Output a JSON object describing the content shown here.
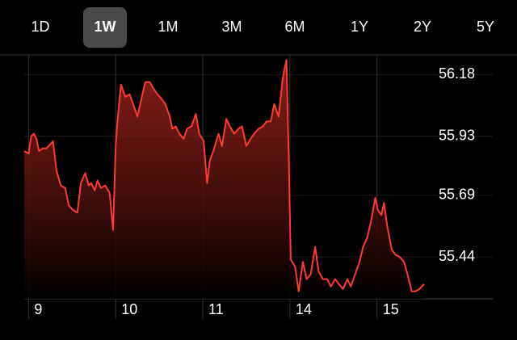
{
  "tabs": [
    "1D",
    "1W",
    "1M",
    "3M",
    "6M",
    "1Y",
    "2Y",
    "5Y"
  ],
  "selected_tab": 1,
  "chart_data": {
    "type": "area",
    "color": "#ff3b30",
    "grid": true,
    "x": [
      -0.05,
      0,
      0.03,
      0.06,
      0.09,
      0.12,
      0.16,
      0.2,
      0.23,
      0.28,
      0.32,
      0.37,
      0.42,
      0.46,
      0.51,
      0.56,
      0.6,
      0.65,
      0.69,
      0.72,
      0.76,
      0.79,
      0.83,
      0.88,
      0.93,
      0.97,
      1.0,
      1.02,
      1.06,
      1.11,
      1.16,
      1.2,
      1.25,
      1.3,
      1.34,
      1.39,
      1.44,
      1.48,
      1.53,
      1.57,
      1.62,
      1.65,
      1.69,
      1.73,
      1.78,
      1.82,
      1.87,
      1.92,
      1.96,
      2.01,
      2.05,
      2.08,
      2.13,
      2.18,
      2.22,
      2.27,
      2.31,
      2.36,
      2.41,
      2.45,
      2.5,
      2.55,
      2.59,
      2.64,
      2.69,
      2.73,
      2.78,
      2.82,
      2.87,
      2.92,
      2.96,
      2.99,
      3.01,
      3.06,
      3.1,
      3.15,
      3.19,
      3.24,
      3.29,
      3.33,
      3.38,
      3.43,
      3.47,
      3.52,
      3.56,
      3.61,
      3.66,
      3.7,
      3.75,
      3.8,
      3.84,
      3.89,
      3.94,
      3.98,
      4.01,
      4.05,
      4.08,
      4.12,
      4.17,
      4.21,
      4.26,
      4.31,
      4.35,
      4.4,
      4.44,
      4.49,
      4.54
    ],
    "values": [
      55.87,
      55.86,
      55.93,
      55.94,
      55.92,
      55.87,
      55.88,
      55.88,
      55.89,
      55.91,
      55.79,
      55.73,
      55.72,
      55.65,
      55.63,
      55.62,
      55.74,
      55.78,
      55.73,
      55.74,
      55.71,
      55.75,
      55.72,
      55.73,
      55.7,
      55.55,
      55.89,
      55.99,
      56.14,
      56.09,
      56.1,
      56.06,
      56.01,
      56.09,
      56.15,
      56.15,
      56.12,
      56.1,
      56.08,
      56.06,
      56.01,
      55.96,
      55.97,
      55.94,
      55.92,
      55.96,
      55.97,
      56.02,
      55.94,
      55.91,
      55.74,
      55.83,
      55.88,
      55.94,
      55.89,
      56.0,
      55.97,
      55.94,
      55.96,
      55.97,
      55.89,
      55.92,
      55.94,
      55.96,
      55.97,
      55.99,
      55.99,
      56.06,
      56.01,
      56.17,
      56.24,
      55.79,
      55.43,
      55.4,
      55.3,
      55.42,
      55.35,
      55.37,
      55.48,
      55.38,
      55.35,
      55.35,
      55.32,
      55.35,
      55.33,
      55.31,
      55.35,
      55.32,
      55.37,
      55.42,
      55.48,
      55.52,
      55.6,
      55.68,
      55.63,
      55.61,
      55.66,
      55.56,
      55.47,
      55.45,
      55.44,
      55.42,
      55.37,
      55.3,
      55.3,
      55.31,
      55.33
    ],
    "xlim": [
      -0.05,
      4.55
    ],
    "xticks": [
      {
        "value": 0,
        "label": "9"
      },
      {
        "value": 1,
        "label": "10"
      },
      {
        "value": 2,
        "label": "11"
      },
      {
        "value": 3,
        "label": "14"
      },
      {
        "value": 4,
        "label": "15"
      }
    ],
    "ylim": [
      55.27,
      56.26
    ],
    "yticks": [
      55.44,
      55.69,
      55.93,
      56.18
    ]
  }
}
